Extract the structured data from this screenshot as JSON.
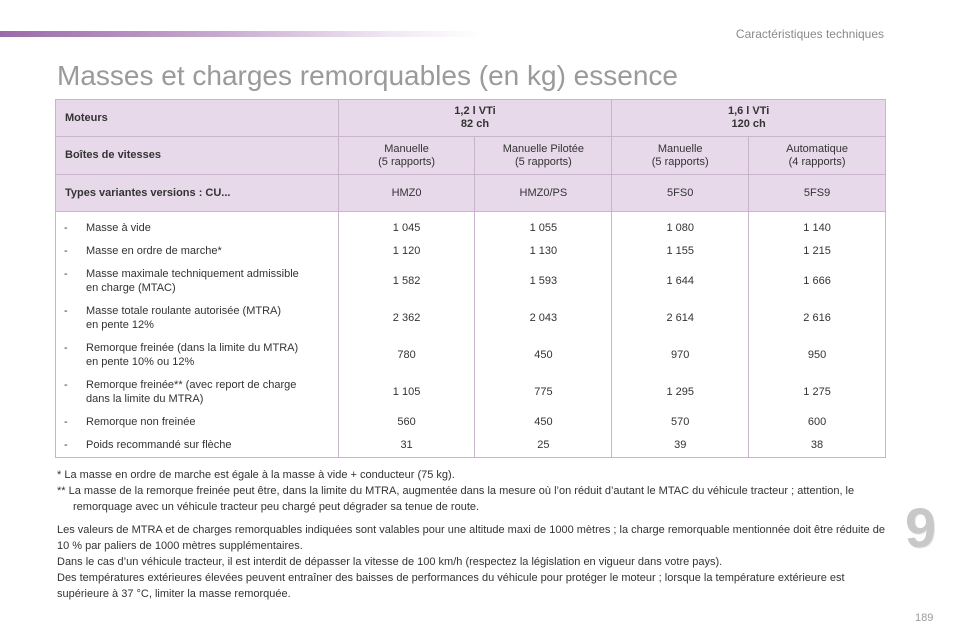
{
  "header": {
    "section": "Caractéristiques techniques",
    "title": "Masses et charges remorquables (en kg) essence"
  },
  "table": {
    "row_moteurs": {
      "label": "Moteurs",
      "engine1": {
        "line1": "1,2 l VTi",
        "line2": "82 ch"
      },
      "engine2": {
        "line1": "1,6 l VTi",
        "line2": "120 ch"
      }
    },
    "row_boites": {
      "label": "Boîtes de vitesses",
      "cols": [
        {
          "line1": "Manuelle",
          "line2": "(5 rapports)"
        },
        {
          "line1": "Manuelle Pilotée",
          "line2": "(5 rapports)"
        },
        {
          "line1": "Manuelle",
          "line2": "(5 rapports)"
        },
        {
          "line1": "Automatique",
          "line2": "(4 rapports)"
        }
      ]
    },
    "row_types": {
      "label": "Types variantes versions : CU...",
      "cols": [
        "HMZ0",
        "HMZ0/PS",
        "5FS0",
        "5FS9"
      ]
    },
    "dash": "-",
    "rows": [
      {
        "line1": "Masse à vide",
        "line2": "",
        "values": [
          "1 045",
          "1 055",
          "1 080",
          "1 140"
        ]
      },
      {
        "line1": "Masse en ordre de marche*",
        "line2": "",
        "values": [
          "1 120",
          "1 130",
          "1 155",
          "1 215"
        ]
      },
      {
        "line1": "Masse maximale techniquement admissible",
        "line2": "en charge (MTAC)",
        "values": [
          "1 582",
          "1 593",
          "1 644",
          "1 666"
        ]
      },
      {
        "line1": "Masse totale roulante autorisée (MTRA)",
        "line2": "en pente 12%",
        "values": [
          "2 362",
          "2 043",
          "2 614",
          "2 616"
        ]
      },
      {
        "line1": "Remorque freinée (dans la limite du MTRA)",
        "line2": "en pente 10% ou 12%",
        "values": [
          "780",
          "450",
          "970",
          "950"
        ]
      },
      {
        "line1": "Remorque freinée** (avec report de charge",
        "line2": "dans la limite du MTRA)",
        "values": [
          "1 105",
          "775",
          "1 295",
          "1 275"
        ]
      },
      {
        "line1": "Remorque non freinée",
        "line2": "",
        "values": [
          "560",
          "450",
          "570",
          "600"
        ]
      },
      {
        "line1": "Poids recommandé sur flèche",
        "line2": "",
        "values": [
          "31",
          "25",
          "39",
          "38"
        ]
      }
    ]
  },
  "notes": {
    "footnote1": "* La masse en ordre de marche est égale à la masse à vide + conducteur (75 kg).",
    "footnote2": "** La masse de la remorque freinée peut être, dans la limite du MTRA, augmentée dans la mesure où l’on réduit d’autant le MTAC du véhicule tracteur ; attention, le remorquage avec un véhicule tracteur peu chargé peut dégrader sa tenue de route.",
    "para1": "Les valeurs de MTRA et de charges remorquables indiquées sont valables pour une altitude maxi de 1000 mètres ; la charge remorquable mentionnée doit être réduite de 10 % par paliers de 1000 mètres supplémentaires.",
    "para2": "Dans le cas d’un véhicule tracteur, il est interdit de dépasser la vitesse de 100 km/h (respectez la législation en vigueur dans votre pays).",
    "para3": "Des températures extérieures élevées peuvent entraîner des baisses de performances du véhicule pour protéger le moteur ; lorsque la température extérieure est supérieure à 37 °C, limiter la masse remorquée."
  },
  "chapter_number": "9",
  "page_number": "189",
  "colors": {
    "accent": "#9a6aa8",
    "header_fill": "#e7d9ea",
    "border": "#c9b3cd"
  }
}
